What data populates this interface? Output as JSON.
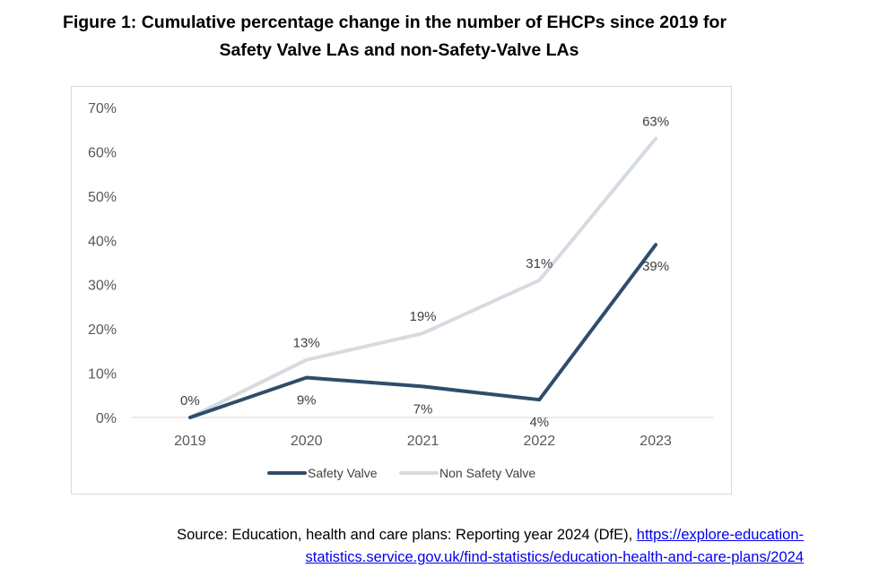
{
  "figure": {
    "title_line1": "Figure 1: Cumulative percentage change in the number of EHCPs since 2019 for",
    "title_line2": "Safety Valve LAs and non-Safety-Valve LAs"
  },
  "source": {
    "prefix": "Source: Education, health and care plans: Reporting year 2024 (DfE), ",
    "link_line1": "https://explore-education-",
    "link_line2": "statistics.service.gov.uk/find-statistics/education-health-and-care-plans/2024"
  },
  "chart_data": {
    "type": "line",
    "title": "Cumulative percentage change in the number of EHCPs since 2019",
    "categories": [
      "2019",
      "2020",
      "2021",
      "2022",
      "2023"
    ],
    "series": [
      {
        "name": "Safety Valve",
        "values": [
          0,
          9,
          7,
          4,
          39
        ],
        "labels": [
          "",
          "9%",
          "7%",
          "4%",
          "39%"
        ],
        "color": "#2e4d6b"
      },
      {
        "name": "Non Safety Valve",
        "values": [
          0,
          13,
          19,
          31,
          63
        ],
        "labels": [
          "0%",
          "13%",
          "19%",
          "31%",
          "63%"
        ],
        "color": "#d5dbe1"
      }
    ],
    "ylim": [
      0,
      70
    ],
    "yticks": [
      0,
      10,
      20,
      30,
      40,
      50,
      60,
      70
    ],
    "ytick_labels": [
      "0%",
      "10%",
      "20%",
      "30%",
      "40%",
      "50%",
      "60%",
      "70%"
    ],
    "xlabel": "",
    "ylabel": "",
    "grid": false,
    "legend_position": "bottom"
  }
}
